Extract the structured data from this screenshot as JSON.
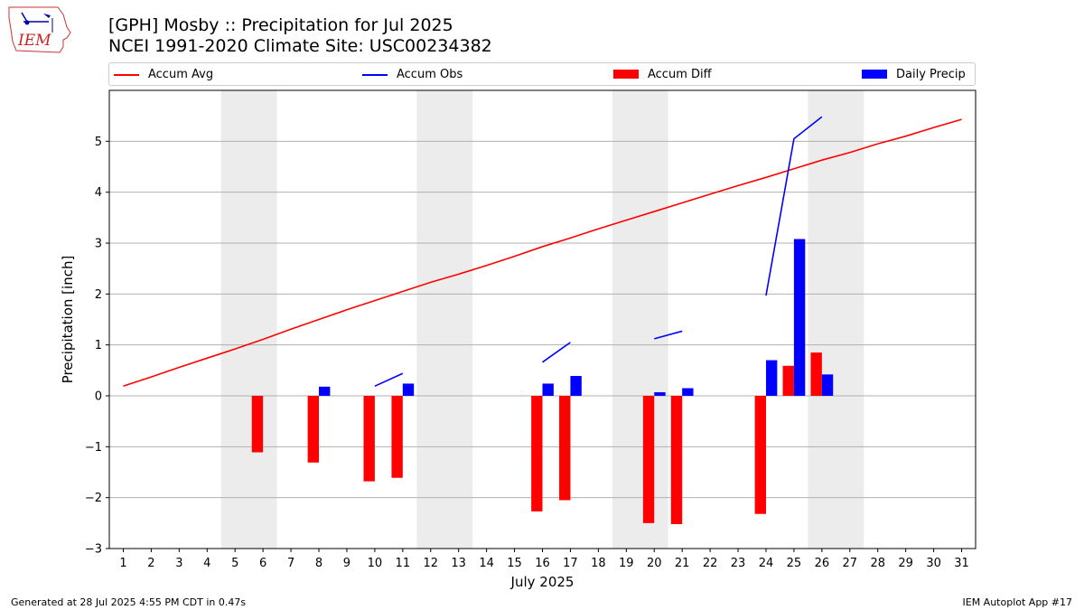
{
  "header": {
    "title_line1": "[GPH] Mosby :: Precipitation for Jul 2025",
    "title_line2": "NCEI 1991-2020 Climate Site: USC00234382",
    "logo_text": "IEM"
  },
  "footer": {
    "left": "Generated at 28 Jul 2025 4:55 PM CDT in 0.47s",
    "right": "IEM Autoplot App #17"
  },
  "colors": {
    "accum_avg": "#ff0000",
    "accum_obs": "#0000ff",
    "accum_diff": "#ff0000",
    "daily_precip": "#0000ff",
    "weekend_shade": "#ececec",
    "grid": "#b0b0b0"
  },
  "chart_data": {
    "type": "bar",
    "xlabel": "July 2025",
    "ylabel": "Precipitation [inch]",
    "xlim": [
      0.5,
      31.5
    ],
    "ylim": [
      -3.0,
      6.0
    ],
    "yticks": [
      -3,
      -2,
      -1,
      0,
      1,
      2,
      3,
      4,
      5
    ],
    "ytick_labels": [
      "−3",
      "−2",
      "−1",
      "0",
      "1",
      "2",
      "3",
      "4",
      "5"
    ],
    "xticks": [
      1,
      2,
      3,
      4,
      5,
      6,
      7,
      8,
      9,
      10,
      11,
      12,
      13,
      14,
      15,
      16,
      17,
      18,
      19,
      20,
      21,
      22,
      23,
      24,
      25,
      26,
      27,
      28,
      29,
      30,
      31
    ],
    "grid": "horizontal",
    "legend_position": "top",
    "weekend_spans": [
      [
        4.5,
        6.5
      ],
      [
        11.5,
        13.5
      ],
      [
        18.5,
        20.5
      ],
      [
        25.5,
        27.5
      ]
    ],
    "legend": [
      "Accum Avg",
      "Accum Obs",
      "Accum Diff",
      "Daily Precip"
    ],
    "series": [
      {
        "name": "Accum Avg",
        "type": "line",
        "x": [
          1,
          2,
          3,
          4,
          5,
          6,
          7,
          8,
          9,
          10,
          11,
          12,
          13,
          14,
          15,
          16,
          17,
          18,
          19,
          20,
          21,
          22,
          23,
          24,
          25,
          26,
          27,
          28,
          29,
          30,
          31
        ],
        "values": [
          0.19,
          0.37,
          0.56,
          0.74,
          0.92,
          1.11,
          1.31,
          1.5,
          1.69,
          1.87,
          2.05,
          2.23,
          2.39,
          2.56,
          2.74,
          2.93,
          3.1,
          3.28,
          3.45,
          3.62,
          3.79,
          3.96,
          4.13,
          4.29,
          4.46,
          4.63,
          4.78,
          4.95,
          5.1,
          5.27,
          5.43
        ]
      },
      {
        "name": "Accum Obs",
        "type": "line_segments",
        "segments": [
          {
            "x": [
              10,
              11
            ],
            "values": [
              0.19,
              0.44
            ]
          },
          {
            "x": [
              16,
              17
            ],
            "values": [
              0.66,
              1.05
            ]
          },
          {
            "x": [
              20,
              21
            ],
            "values": [
              1.12,
              1.27
            ]
          },
          {
            "x": [
              24,
              25,
              26
            ],
            "values": [
              1.97,
              5.05,
              5.48
            ]
          }
        ]
      },
      {
        "name": "Accum Diff",
        "type": "bar",
        "x": [
          6,
          8,
          10,
          11,
          16,
          17,
          20,
          21,
          24,
          25,
          26
        ],
        "values": [
          -1.11,
          -1.31,
          -1.68,
          -1.61,
          -2.27,
          -2.05,
          -2.5,
          -2.52,
          -2.32,
          0.59,
          0.85
        ]
      },
      {
        "name": "Daily Precip",
        "type": "bar",
        "x": [
          8,
          11,
          16,
          17,
          20,
          21,
          24,
          25,
          26
        ],
        "values": [
          0.18,
          0.24,
          0.24,
          0.39,
          0.07,
          0.15,
          0.7,
          3.08,
          0.42
        ]
      }
    ]
  }
}
